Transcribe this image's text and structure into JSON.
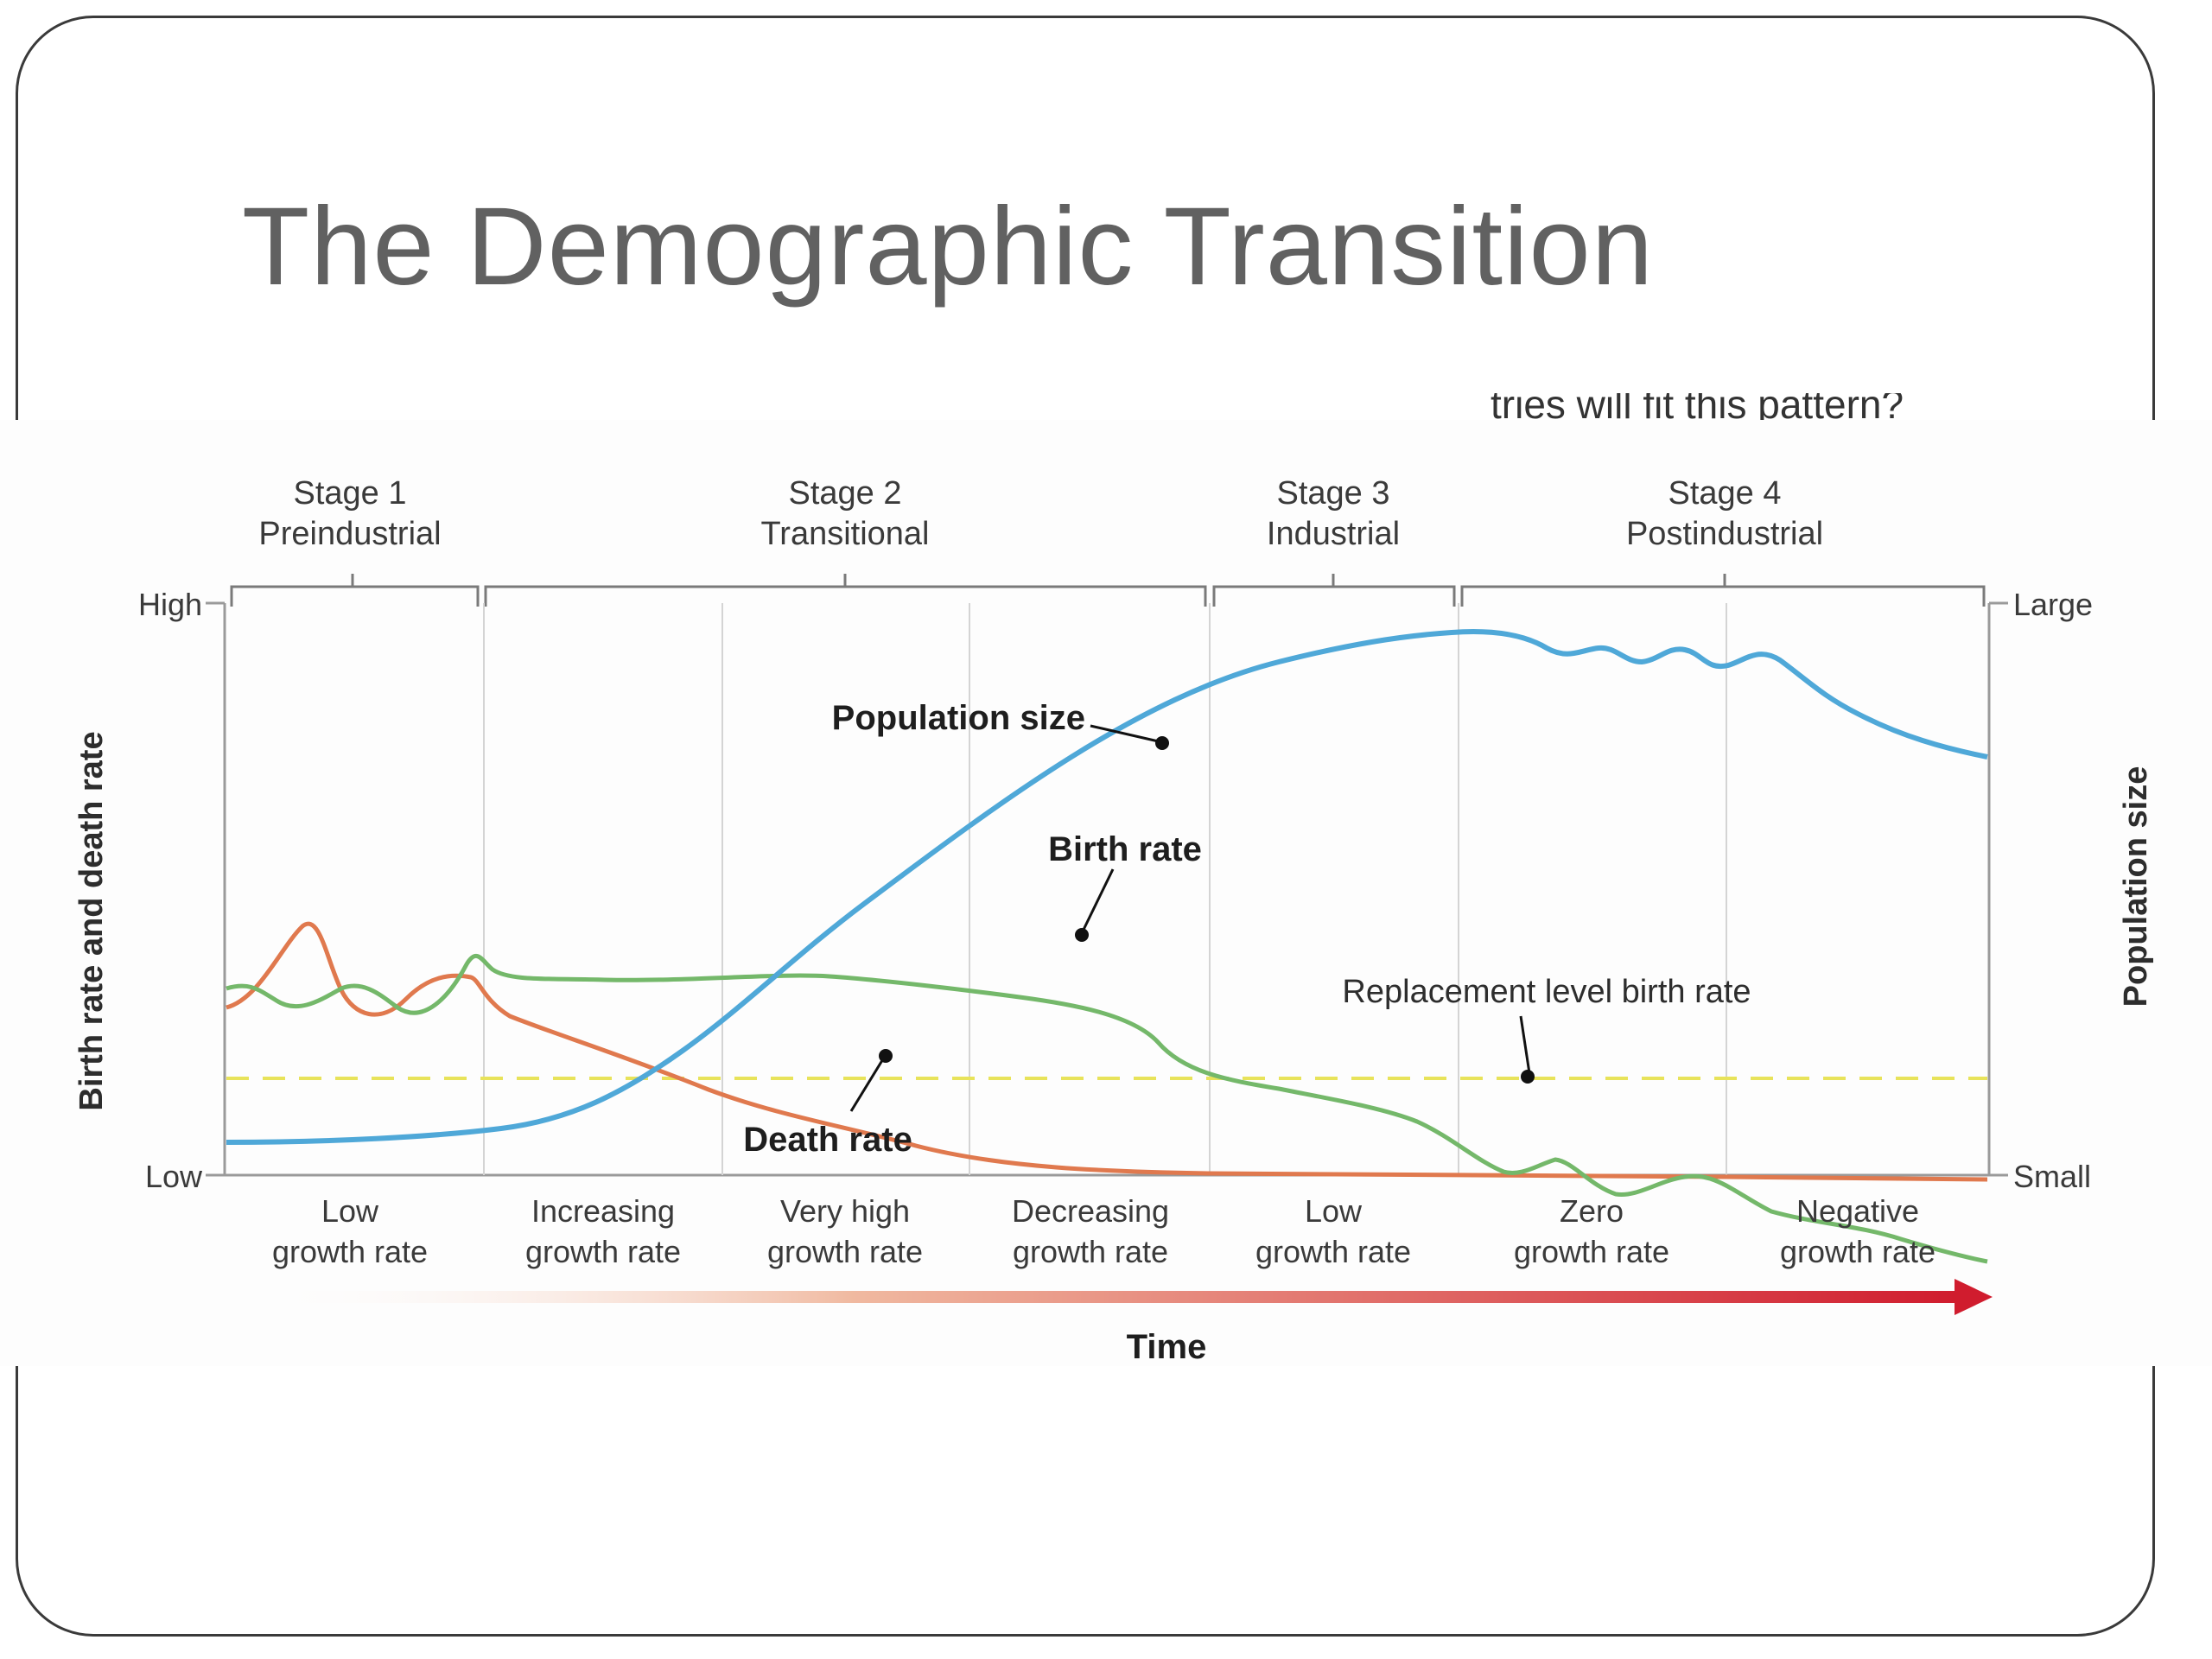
{
  "slide": {
    "title": "The Demographic Transition",
    "cutoff_caption": "tries will fit this pattern?"
  },
  "diagram": {
    "stages": [
      {
        "name": "Stage 1",
        "label": "Preindustrial"
      },
      {
        "name": "Stage 2",
        "label": "Transitional"
      },
      {
        "name": "Stage 3",
        "label": "Industrial"
      },
      {
        "name": "Stage 4",
        "label": "Postindustrial"
      }
    ],
    "growth_labels": [
      {
        "line1": "Low",
        "line2": "growth rate"
      },
      {
        "line1": "Increasing",
        "line2": "growth rate"
      },
      {
        "line1": "Very high",
        "line2": "growth rate"
      },
      {
        "line1": "Decreasing",
        "line2": "growth rate"
      },
      {
        "line1": "Low",
        "line2": "growth rate"
      },
      {
        "line1": "Zero",
        "line2": "growth rate"
      },
      {
        "line1": "Negative",
        "line2": "growth rate"
      }
    ],
    "left_axis": {
      "title": "Birth rate and death rate",
      "high": "High",
      "low": "Low"
    },
    "right_axis": {
      "title": "Population size",
      "high": "Large",
      "low": "Small"
    },
    "x_axis": {
      "title": "Time"
    },
    "annotations": {
      "population": "Population size",
      "birth": "Birth rate",
      "death": "Death rate",
      "replacement": "Replacement level birth rate"
    },
    "colors": {
      "population": "#4fa8d8",
      "birth": "#74b86a",
      "death": "#e0794e",
      "replacement": "#e8e35a",
      "time_arrow": "#d01c2e",
      "axes": "#7a7a7a"
    }
  }
}
